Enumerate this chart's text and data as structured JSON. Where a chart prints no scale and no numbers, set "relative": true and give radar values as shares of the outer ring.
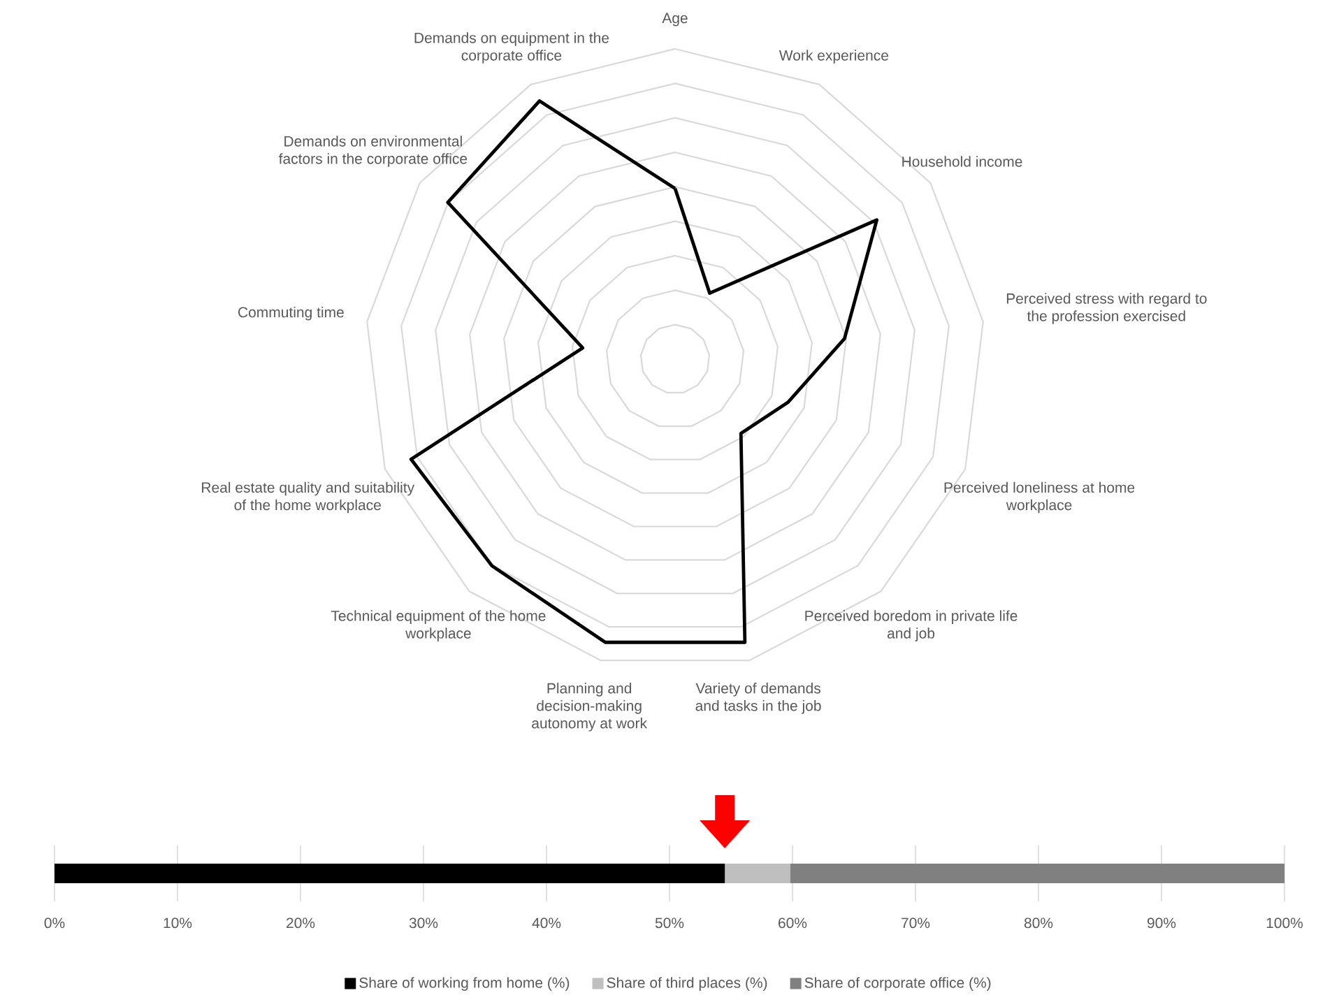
{
  "chart_data": [
    {
      "type": "radar",
      "relative": true,
      "grid": true,
      "categories": [
        "Age",
        "Work experience",
        "Household income",
        "Perceived stress with regard to the profession exercised",
        "Perceived loneliness at home workplace",
        "Perceived boredom in private life and job",
        "Variety of demands and tasks in the job",
        "Planning and decision-making autonomy at work",
        "Technical equipment of the home workplace",
        "Real estate quality and suitability of the home workplace",
        "Commuting time",
        "Demands on environmental factors in the corporate office",
        "Demands on equipment in the corporate office"
      ],
      "series": [
        {
          "color": "#000000",
          "values": [
            0.55,
            0.24,
            0.79,
            0.55,
            0.39,
            0.32,
            0.94,
            0.94,
            0.89,
            0.91,
            0.3,
            0.89,
            0.94
          ]
        }
      ]
    },
    {
      "type": "bar",
      "orientation": "horizontal",
      "stacked": true,
      "categories": [
        null
      ],
      "series": [
        {
          "name": "Share of working from home (%)",
          "color": "#000000",
          "values": [
            54.5
          ]
        },
        {
          "name": "Share of third places (%)",
          "color": "#bfbfbf",
          "values": [
            5.3
          ]
        },
        {
          "name": "Share of corporate office (%)",
          "color": "#808080",
          "values": [
            40.2
          ]
        }
      ],
      "xlim": [
        0,
        100
      ],
      "xticks": [
        {
          "value": 0,
          "label": "0%"
        },
        {
          "value": 10,
          "label": "10%"
        },
        {
          "value": 20,
          "label": "20%"
        },
        {
          "value": 30,
          "label": "30%"
        },
        {
          "value": 40,
          "label": "40%"
        },
        {
          "value": 50,
          "label": "50%"
        },
        {
          "value": 60,
          "label": "60%"
        },
        {
          "value": 70,
          "label": "70%"
        },
        {
          "value": 80,
          "label": "80%"
        },
        {
          "value": 90,
          "label": "90%"
        },
        {
          "value": 100,
          "label": "100%"
        }
      ],
      "grid": "x",
      "legend": "bottom"
    }
  ]
}
